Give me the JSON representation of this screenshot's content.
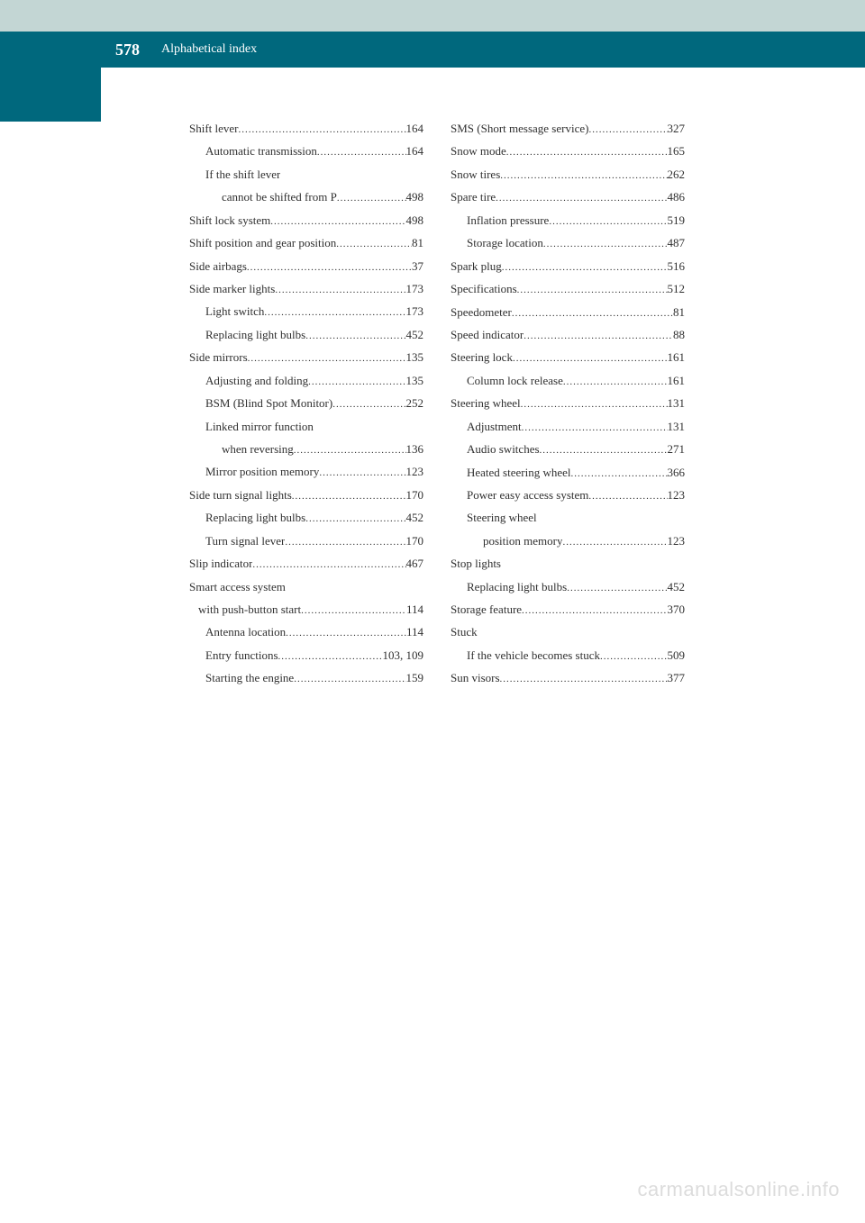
{
  "header": {
    "pageNumber": "578",
    "title": "Alphabetical index"
  },
  "leftColumn": [
    {
      "label": "Shift lever",
      "page": "164",
      "level": 0
    },
    {
      "label": "Automatic transmission",
      "page": "164",
      "level": 1
    },
    {
      "label": "If the shift lever",
      "page": "",
      "level": 1,
      "noDots": true
    },
    {
      "label": "cannot be shifted from P",
      "page": "498",
      "level": 2
    },
    {
      "label": "Shift lock system",
      "page": "498",
      "level": 0
    },
    {
      "label": "Shift position and gear position",
      "page": "81",
      "level": 0
    },
    {
      "label": "Side airbags",
      "page": "37",
      "level": 0
    },
    {
      "label": "Side marker lights",
      "page": "173",
      "level": 0
    },
    {
      "label": "Light switch",
      "page": "173",
      "level": 1
    },
    {
      "label": "Replacing light bulbs",
      "page": "452",
      "level": 1
    },
    {
      "label": "Side mirrors",
      "page": "135",
      "level": 0
    },
    {
      "label": "Adjusting and folding",
      "page": "135",
      "level": 1
    },
    {
      "label": "BSM (Blind Spot Monitor)",
      "page": "252",
      "level": 1
    },
    {
      "label": "Linked mirror function",
      "page": "",
      "level": 1,
      "noDots": true
    },
    {
      "label": "when reversing",
      "page": "136",
      "level": 2
    },
    {
      "label": "Mirror position memory",
      "page": "123",
      "level": 1
    },
    {
      "label": "Side turn signal lights",
      "page": "170",
      "level": 0
    },
    {
      "label": "Replacing light bulbs",
      "page": "452",
      "level": 1
    },
    {
      "label": "Turn signal lever",
      "page": "170",
      "level": 1
    },
    {
      "label": "Slip indicator",
      "page": "467",
      "level": 0
    },
    {
      "label": "Smart access system",
      "page": "",
      "level": 0,
      "noDots": true
    },
    {
      "label": "with push-button start",
      "page": "114",
      "level": 0,
      "indent": 10
    },
    {
      "label": "Antenna location",
      "page": "114",
      "level": 1
    },
    {
      "label": "Entry functions",
      "page": "103, 109",
      "level": 1
    },
    {
      "label": "Starting the engine",
      "page": "159",
      "level": 1
    }
  ],
  "rightColumn": [
    {
      "label": "SMS (Short message service)",
      "page": "327",
      "level": 0
    },
    {
      "label": "Snow mode",
      "page": "165",
      "level": 0
    },
    {
      "label": "Snow tires",
      "page": "262",
      "level": 0
    },
    {
      "label": "Spare tire",
      "page": "486",
      "level": 0
    },
    {
      "label": "Inflation pressure",
      "page": "519",
      "level": 1
    },
    {
      "label": "Storage location",
      "page": "487",
      "level": 1
    },
    {
      "label": "Spark plug",
      "page": "516",
      "level": 0
    },
    {
      "label": "Specifications",
      "page": "512",
      "level": 0
    },
    {
      "label": "Speedometer",
      "page": "81",
      "level": 0
    },
    {
      "label": "Speed indicator",
      "page": "88",
      "level": 0
    },
    {
      "label": "Steering lock",
      "page": "161",
      "level": 0
    },
    {
      "label": "Column lock release",
      "page": "161",
      "level": 1
    },
    {
      "label": "Steering wheel",
      "page": "131",
      "level": 0
    },
    {
      "label": "Adjustment",
      "page": "131",
      "level": 1
    },
    {
      "label": "Audio switches",
      "page": "271",
      "level": 1
    },
    {
      "label": "Heated steering wheel",
      "page": "366",
      "level": 1
    },
    {
      "label": "Power easy access system",
      "page": "123",
      "level": 1
    },
    {
      "label": "Steering wheel",
      "page": "",
      "level": 1,
      "noDots": true
    },
    {
      "label": "position memory",
      "page": "123",
      "level": 2
    },
    {
      "label": "Stop lights",
      "page": "",
      "level": 0,
      "noDots": true
    },
    {
      "label": "Replacing light bulbs",
      "page": "452",
      "level": 1
    },
    {
      "label": "Storage feature",
      "page": "370",
      "level": 0
    },
    {
      "label": "Stuck",
      "page": "",
      "level": 0,
      "noDots": true
    },
    {
      "label": "If the vehicle becomes stuck",
      "page": "509",
      "level": 1
    },
    {
      "label": "Sun visors",
      "page": "377",
      "level": 0
    }
  ],
  "watermark": "carmanualsonline.info"
}
